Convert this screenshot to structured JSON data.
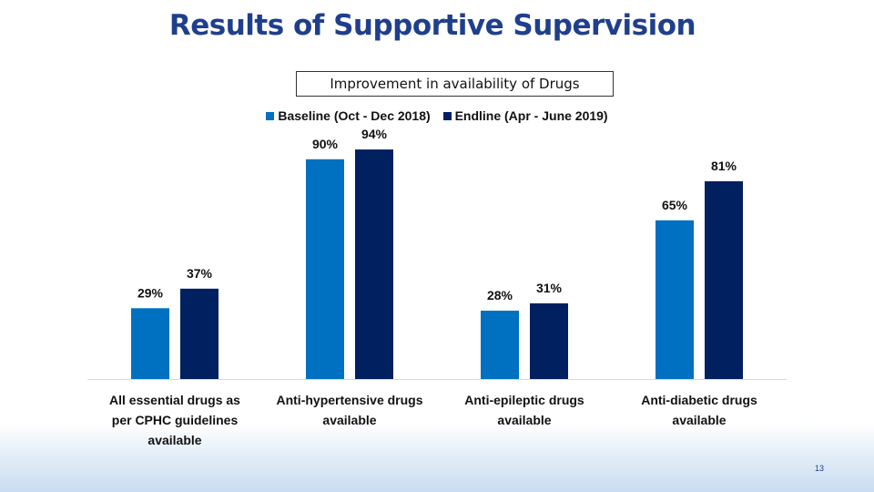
{
  "slide_title": "Results of Supportive Supervision",
  "page_number": "13",
  "colors": {
    "baseline": "#0070c0",
    "endline": "#002060",
    "title": "#1f3f8c"
  },
  "chart_data": {
    "type": "bar",
    "title": "Improvement in availability of Drugs",
    "categories": [
      [
        "All essential drugs as",
        "per CPHC guidelines",
        "available"
      ],
      [
        "Anti-hypertensive drugs",
        "available"
      ],
      [
        "Anti-epileptic drugs",
        "available"
      ],
      [
        "Anti-diabetic drugs",
        "available"
      ]
    ],
    "series": [
      {
        "name": "Baseline (Oct - Dec 2018)",
        "values": [
          29,
          90,
          28,
          65
        ],
        "labels": [
          "29%",
          "90%",
          "28%",
          "65%"
        ]
      },
      {
        "name": "Endline (Apr - June 2019)",
        "values": [
          37,
          94,
          31,
          81
        ],
        "labels": [
          "37%",
          "94%",
          "31%",
          "81%"
        ]
      }
    ],
    "ylim": [
      0,
      100
    ],
    "legend_position": "top",
    "grid": false
  }
}
